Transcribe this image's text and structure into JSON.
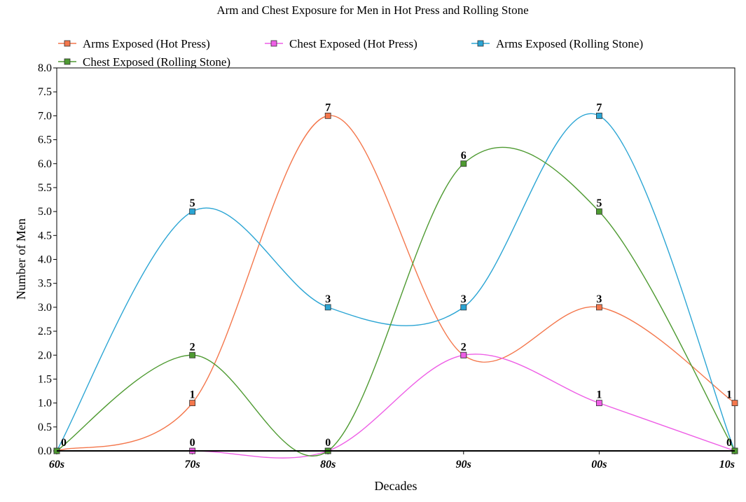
{
  "chart_data": {
    "type": "line",
    "title": "Arm and Chest Exposure for Men in Hot Press and Rolling Stone",
    "xlabel": "Decades",
    "ylabel": "Number of Men",
    "categories": [
      "60s",
      "70s",
      "80s",
      "90s",
      "00s",
      "10s"
    ],
    "ylim": [
      0,
      8
    ],
    "ytick_step": 0.5,
    "ytick_labels": [
      "0.0",
      "0.5",
      "1.0",
      "1.5",
      "2.0",
      "2.5",
      "3.0",
      "3.5",
      "4.0",
      "4.5",
      "5.0",
      "5.5",
      "6.0",
      "6.5",
      "7.0",
      "7.5",
      "8.0"
    ],
    "smooth": true,
    "grid": false,
    "legend_position": "top",
    "series": [
      {
        "name": "Arms Exposed (Hot Press)",
        "values": [
          0,
          1,
          7,
          2,
          3,
          1
        ],
        "color": "#f4774c",
        "labels": [
          "",
          "1",
          "7",
          "2",
          "3",
          "1"
        ]
      },
      {
        "name": "Chest Exposed (Hot Press)",
        "values": [
          0,
          0,
          0,
          2,
          1,
          0
        ],
        "color": "#ee5ee6",
        "labels": [
          "",
          "0",
          "",
          "",
          "1",
          "0"
        ]
      },
      {
        "name": "Arms Exposed (Rolling Stone)",
        "values": [
          0,
          5,
          3,
          3,
          7,
          0
        ],
        "color": "#2ba5d4",
        "labels": [
          "",
          "5",
          "3",
          "3",
          "7",
          ""
        ]
      },
      {
        "name": "Chest Exposed (Rolling Stone)",
        "values": [
          0,
          2,
          0,
          6,
          5,
          0
        ],
        "color": "#4e9a31",
        "labels": [
          "0",
          "2",
          "0",
          "6",
          "5",
          ""
        ]
      }
    ]
  }
}
